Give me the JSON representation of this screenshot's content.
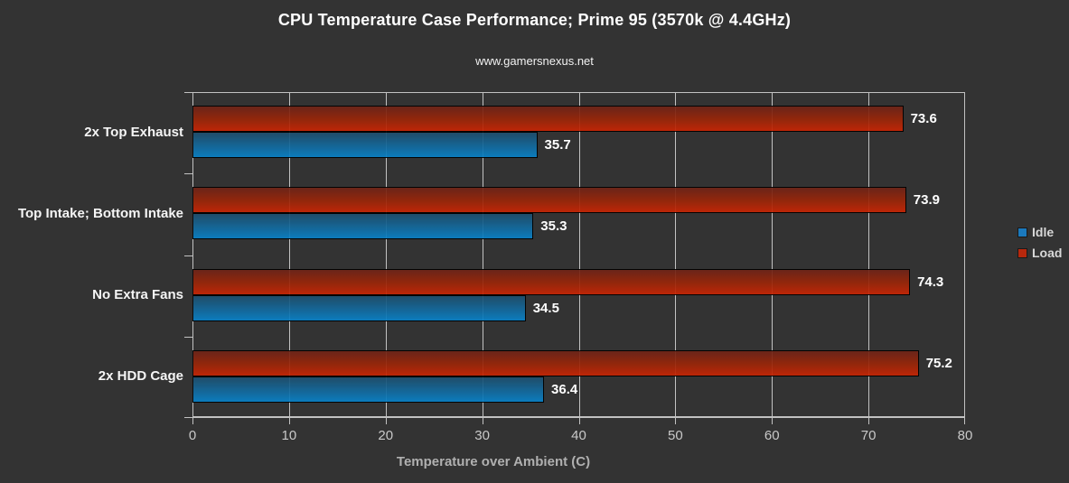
{
  "title": "CPU Temperature Case Performance; Prime 95 (3570k @ 4.4GHz)",
  "subtitle": "www.gamersnexus.net",
  "chart_data": {
    "type": "bar",
    "orientation": "horizontal",
    "title": "CPU Temperature Case Performance; Prime 95 (3570k @ 4.4GHz)",
    "subtitle": "www.gamersnexus.net",
    "categories": [
      "2x Top Exhaust",
      "Top Intake; Bottom Intake",
      "No Extra Fans",
      "2x HDD Cage"
    ],
    "series": [
      {
        "name": "Idle",
        "key": "idle",
        "color": "#1b79bd",
        "values": [
          35.7,
          35.3,
          34.5,
          36.4
        ]
      },
      {
        "name": "Load",
        "key": "load",
        "color": "#b7280d",
        "values": [
          73.6,
          73.9,
          74.3,
          75.2
        ]
      }
    ],
    "xlabel": "Temperature over Ambient (C)",
    "ylabel": "",
    "xlim": [
      0,
      80
    ],
    "xticks": [
      0,
      10,
      20,
      30,
      40,
      50,
      60,
      70,
      80
    ],
    "grid": "vertical",
    "legend_position": "right",
    "value_label_decimals": 1
  },
  "colors": {
    "background": "#333333",
    "grid": "#c2c2c2",
    "title_text": "#ffffff",
    "tick_text": "#c9c9c9",
    "axis_title_text": "#b0b0b0",
    "category_text": "#f5f5f5",
    "value_text": "#ffffff",
    "legend_text": "#d8d8d8"
  }
}
